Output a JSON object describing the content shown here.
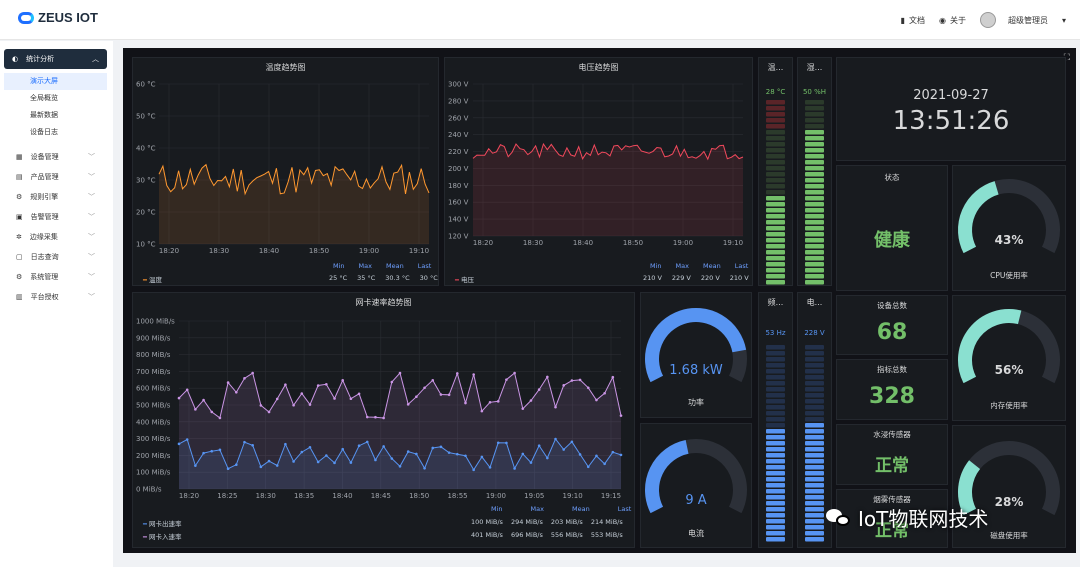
{
  "header": {
    "brand": "ZEUS IOT",
    "docs": "文档",
    "about": "关于",
    "user": "超级管理员"
  },
  "sidebar": {
    "active": "统计分析",
    "subitems": [
      "演示大屏",
      "全局概览",
      "最新数据",
      "设备日志"
    ],
    "items": [
      "设备管理",
      "产品管理",
      "规则引擎",
      "告警管理",
      "边缘采集",
      "日志查询",
      "系统管理",
      "平台授权"
    ]
  },
  "temp_chart": {
    "title": "温度趋势图",
    "y_ticks": [
      "60 °C",
      "50 °C",
      "40 °C",
      "30 °C",
      "20 °C",
      "10 °C"
    ],
    "x_ticks": [
      "18:20",
      "18:30",
      "18:40",
      "18:50",
      "19:00",
      "19:10"
    ],
    "legend_headers": [
      "Min",
      "Max",
      "Mean",
      "Last"
    ],
    "series_name": "温度",
    "stats": [
      "25 °C",
      "35 °C",
      "30.3 °C",
      "30 °C"
    ],
    "color": "#ff9830"
  },
  "volt_chart": {
    "title": "电压趋势图",
    "y_ticks": [
      "300 V",
      "280 V",
      "260 V",
      "240 V",
      "220 V",
      "200 V",
      "180 V",
      "160 V",
      "140 V",
      "120 V"
    ],
    "x_ticks": [
      "18:20",
      "18:30",
      "18:40",
      "18:50",
      "19:00",
      "19:10"
    ],
    "legend_headers": [
      "Min",
      "Max",
      "Mean",
      "Last"
    ],
    "series_name": "电压",
    "stats": [
      "210 V",
      "229 V",
      "220 V",
      "210 V"
    ],
    "color": "#f2495c"
  },
  "net_chart": {
    "title": "网卡速率趋势图",
    "y_ticks": [
      "1000 MiB/s",
      "900 MiB/s",
      "800 MiB/s",
      "700 MiB/s",
      "600 MiB/s",
      "500 MiB/s",
      "400 MiB/s",
      "300 MiB/s",
      "200 MiB/s",
      "100 MiB/s",
      "0 MiB/s"
    ],
    "x_ticks": [
      "18:20",
      "18:25",
      "18:30",
      "18:35",
      "18:40",
      "18:45",
      "18:50",
      "18:55",
      "19:00",
      "19:05",
      "19:10",
      "19:15"
    ],
    "legend_headers": [
      "Min",
      "Max",
      "Mean",
      "Last"
    ],
    "series": [
      {
        "name": "网卡出速率",
        "stats": [
          "100 MiB/s",
          "294 MiB/s",
          "203 MiB/s",
          "214 MiB/s"
        ],
        "color": "#5794f2"
      },
      {
        "name": "网卡入速率",
        "stats": [
          "401 MiB/s",
          "696 MiB/s",
          "556 MiB/s",
          "553 MiB/s"
        ],
        "color": "#ca95e5"
      }
    ]
  },
  "bars": {
    "temp": {
      "title": "温...",
      "value": "28 °C",
      "level": 0.47
    },
    "humid": {
      "title": "湿...",
      "value": "50 %H",
      "level": 0.82
    },
    "freq": {
      "title": "频...",
      "value": "53 Hz",
      "level": 0.55
    },
    "volt": {
      "title": "电...",
      "value": "228 V",
      "level": 0.6
    }
  },
  "clock": {
    "date": "2021-09-27",
    "time": "13:51:26"
  },
  "status": {
    "title": "状态",
    "value": "健康"
  },
  "cpu": {
    "value": "43%",
    "label": "CPU使用率",
    "percent": 43
  },
  "mem": {
    "value": "56%",
    "label": "内存使用率",
    "percent": 56
  },
  "disk": {
    "value": "28%",
    "label": "磁盘使用率",
    "percent": 28
  },
  "power": {
    "value": "1.68 kW",
    "label": "功率",
    "percent": 84
  },
  "current": {
    "value": "9 A",
    "label": "电流",
    "percent": 45
  },
  "device_total": {
    "title": "设备总数",
    "value": "68"
  },
  "metric_total": {
    "title": "指标总数",
    "value": "328"
  },
  "water": {
    "title": "水浸传感器",
    "value": "正常"
  },
  "smoke": {
    "title": "烟雾传感器",
    "value": "正常"
  },
  "watermark": "IoT物联网技术"
}
